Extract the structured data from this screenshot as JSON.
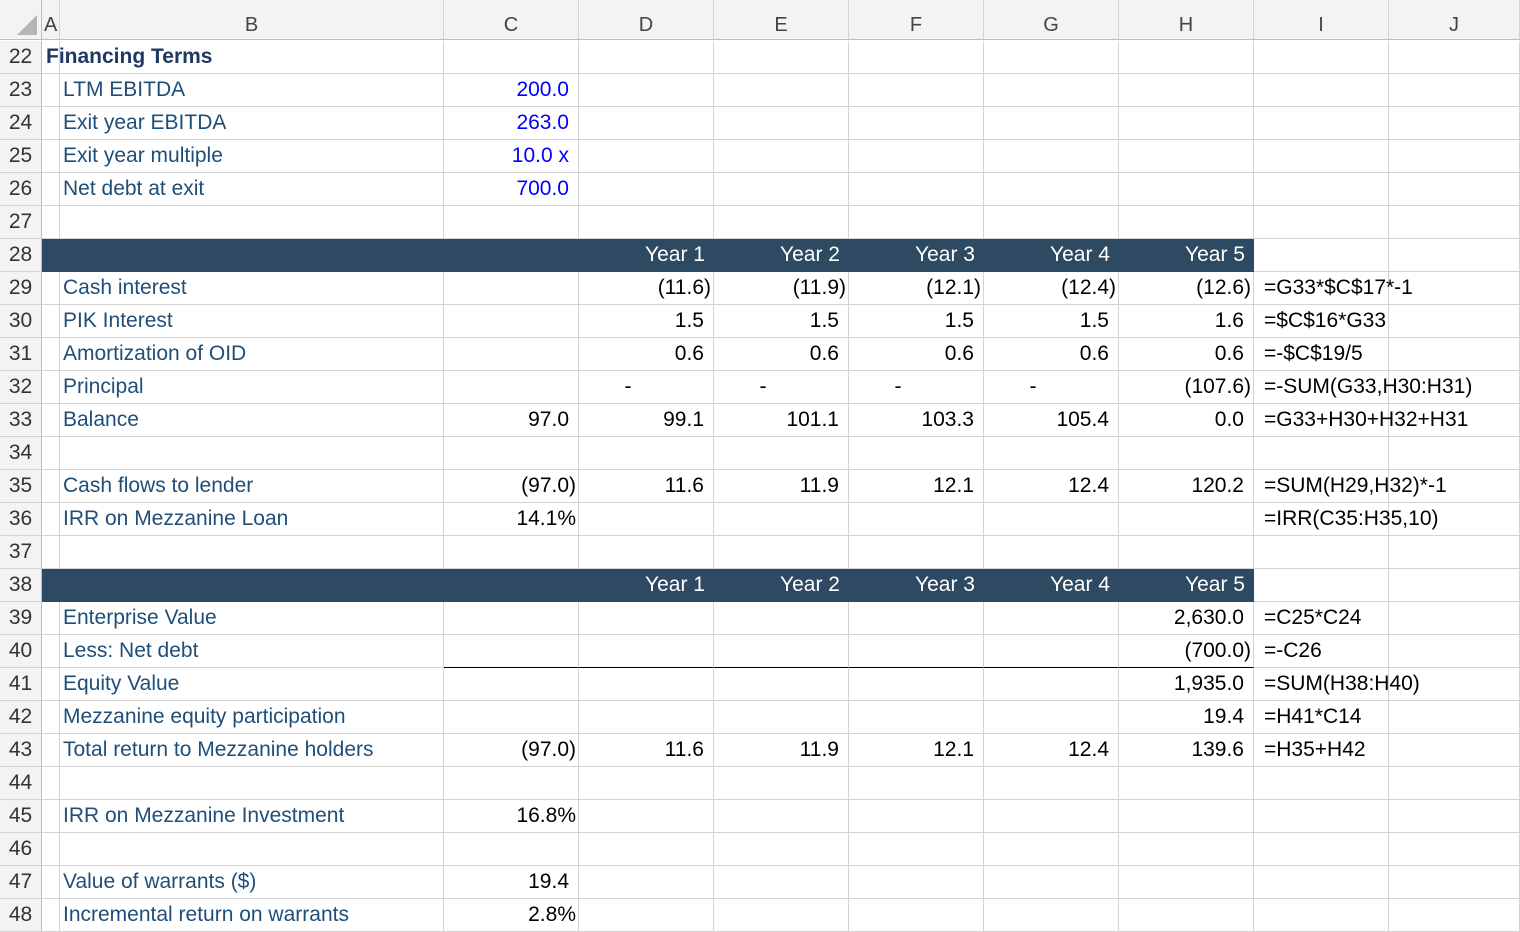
{
  "columns": [
    "A",
    "B",
    "C",
    "D",
    "E",
    "F",
    "G",
    "H",
    "I",
    "J"
  ],
  "rows": [
    22,
    23,
    24,
    25,
    26,
    27,
    28,
    29,
    30,
    31,
    32,
    33,
    34,
    35,
    36,
    37,
    38,
    39,
    40,
    41,
    42,
    43,
    44,
    45,
    46,
    47,
    48
  ],
  "section_title": "Financing Terms",
  "inputs": [
    {
      "label": "LTM EBITDA",
      "value": "200.0"
    },
    {
      "label": "Exit year EBITDA",
      "value": "263.0"
    },
    {
      "label": "Exit year multiple",
      "value": "10.0 x"
    },
    {
      "label": "Net debt at exit",
      "value": "700.0"
    }
  ],
  "years": [
    "Year 1",
    "Year 2",
    "Year 3",
    "Year 4",
    "Year 5"
  ],
  "loan": [
    {
      "label": "Cash interest",
      "c": "",
      "vals": [
        "(11.6)",
        "(11.9)",
        "(12.1)",
        "(12.4)",
        "(12.6)"
      ],
      "formula": "=G33*$C$17*-1"
    },
    {
      "label": "PIK Interest",
      "c": "",
      "vals": [
        "1.5",
        "1.5",
        "1.5",
        "1.5",
        "1.6"
      ],
      "formula": "=$C$16*G33"
    },
    {
      "label": "Amortization of OID",
      "c": "",
      "vals": [
        "0.6",
        "0.6",
        "0.6",
        "0.6",
        "0.6"
      ],
      "formula": "=-$C$19/5"
    },
    {
      "label": "Principal",
      "c": "",
      "vals": [
        "-",
        "-",
        "-",
        "-",
        "(107.6)"
      ],
      "formula": "=-SUM(G33,H30:H31)"
    },
    {
      "label": "Balance",
      "c": "97.0",
      "vals": [
        "99.1",
        "101.1",
        "103.3",
        "105.4",
        "0.0"
      ],
      "formula": "=G33+H30+H32+H31"
    }
  ],
  "cashflows": {
    "label": "Cash flows to lender",
    "c": "(97.0)",
    "vals": [
      "11.6",
      "11.9",
      "12.1",
      "12.4",
      "120.2"
    ],
    "formula": "=SUM(H29,H32)*-1"
  },
  "irr_loan": {
    "label": "IRR on Mezzanine Loan",
    "c": "14.1%",
    "formula": "=IRR(C35:H35,10)"
  },
  "equity": [
    {
      "label": "Enterprise Value",
      "c": "",
      "vals": [
        "",
        "",
        "",
        "",
        "2,630.0"
      ],
      "formula": "=C25*C24"
    },
    {
      "label": "Less: Net debt",
      "c": "",
      "vals": [
        "",
        "",
        "",
        "",
        "(700.0)"
      ],
      "formula": "=-C26"
    },
    {
      "label": "Equity Value",
      "c": "",
      "vals": [
        "",
        "",
        "",
        "",
        "1,935.0"
      ],
      "formula": "=SUM(H38:H40)"
    },
    {
      "label": "Mezzanine equity participation",
      "c": "",
      "vals": [
        "",
        "",
        "",
        "",
        "19.4"
      ],
      "formula": "=H41*C14"
    },
    {
      "label": "Total return to Mezzanine holders",
      "c": "(97.0)",
      "vals": [
        "11.6",
        "11.9",
        "12.1",
        "12.4",
        "139.6"
      ],
      "formula": "=H35+H42"
    }
  ],
  "irr_investment": {
    "label": "IRR on Mezzanine Investment",
    "c": "16.8%"
  },
  "warrants_value": {
    "label": "Value of warrants ($)",
    "c": "19.4"
  },
  "incremental_return": {
    "label": "Incremental return on warrants",
    "c": "2.8%"
  },
  "colors": {
    "header_band": "#2e4a62",
    "label_text": "#1f4e79",
    "input_text": "#0000ff",
    "gridline": "#d4d4d4"
  }
}
